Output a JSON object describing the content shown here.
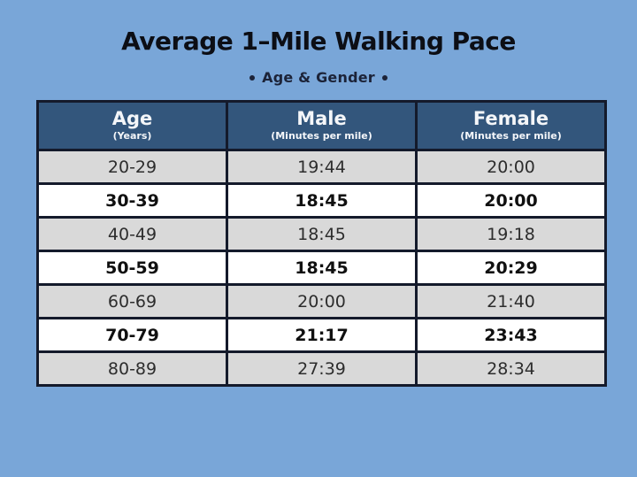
{
  "title": "Average 1–Mile Walking Pace",
  "subtitle": "Age & Gender",
  "colors": {
    "background": "#79a6d8",
    "header_bg": "#33567c",
    "header_text": "#f4f6f9",
    "row_gray": "#d9d9d9",
    "row_white": "#ffffff",
    "grid_border": "#141a2b",
    "title_text": "#0c0e15",
    "subtitle_text": "#1c2338"
  },
  "table": {
    "columns": [
      {
        "label": "Age",
        "unit": "(Years)"
      },
      {
        "label": "Male",
        "unit": "(Minutes per mile)"
      },
      {
        "label": "Female",
        "unit": "(Minutes per mile)"
      }
    ],
    "rows": [
      {
        "age": "20-29",
        "male": "19:44",
        "female": "20:00",
        "emphasis": false
      },
      {
        "age": "30-39",
        "male": "18:45",
        "female": "20:00",
        "emphasis": true
      },
      {
        "age": "40-49",
        "male": "18:45",
        "female": "19:18",
        "emphasis": false
      },
      {
        "age": "50-59",
        "male": "18:45",
        "female": "20:29",
        "emphasis": true
      },
      {
        "age": "60-69",
        "male": "20:00",
        "female": "21:40",
        "emphasis": false
      },
      {
        "age": "70-79",
        "male": "21:17",
        "female": "23:43",
        "emphasis": true
      },
      {
        "age": "80-89",
        "male": "27:39",
        "female": "28:34",
        "emphasis": false
      }
    ]
  },
  "chart_data": {
    "type": "table",
    "title": "Average 1–Mile Walking Pace",
    "subtitle": "Age & Gender",
    "columns": [
      "Age (Years)",
      "Male (Minutes per mile)",
      "Female (Minutes per mile)"
    ],
    "categories": [
      "20-29",
      "30-39",
      "40-49",
      "50-59",
      "60-69",
      "70-79",
      "80-89"
    ],
    "series": [
      {
        "name": "Male",
        "values": [
          "19:44",
          "18:45",
          "18:45",
          "18:45",
          "20:00",
          "21:17",
          "27:39"
        ]
      },
      {
        "name": "Female",
        "values": [
          "20:00",
          "20:00",
          "19:18",
          "20:29",
          "21:40",
          "23:43",
          "28:34"
        ]
      }
    ],
    "legend_position": "none",
    "grid": true
  }
}
